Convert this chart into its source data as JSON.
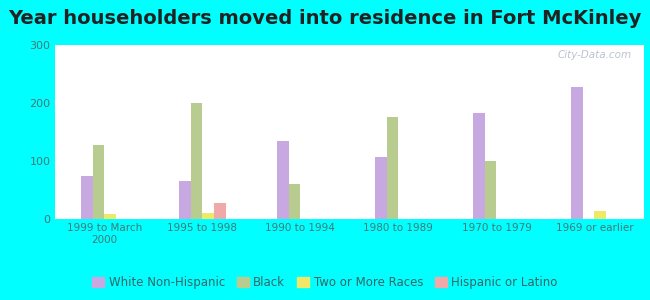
{
  "title": "Year householders moved into residence in Fort McKinley",
  "categories": [
    "1999 to March\n2000",
    "1995 to 1998",
    "1990 to 1994",
    "1980 to 1989",
    "1970 to 1979",
    "1969 or earlier"
  ],
  "series": {
    "White Non-Hispanic": [
      75,
      65,
      135,
      107,
      183,
      228
    ],
    "Black": [
      127,
      200,
      60,
      175,
      100,
      0
    ],
    "Two or More Races": [
      8,
      10,
      0,
      0,
      0,
      13
    ],
    "Hispanic or Latino": [
      0,
      27,
      0,
      0,
      0,
      0
    ]
  },
  "colors": {
    "White Non-Hispanic": "#c8a8e0",
    "Black": "#b8cc90",
    "Two or More Races": "#f0e868",
    "Hispanic or Latino": "#f0a8a8"
  },
  "ylim": [
    0,
    300
  ],
  "yticks": [
    0,
    100,
    200,
    300
  ],
  "outer_background": "#00ffff",
  "watermark": "City-Data.com",
  "title_fontsize": 14,
  "bar_width": 0.12,
  "legend_fontsize": 8.5
}
